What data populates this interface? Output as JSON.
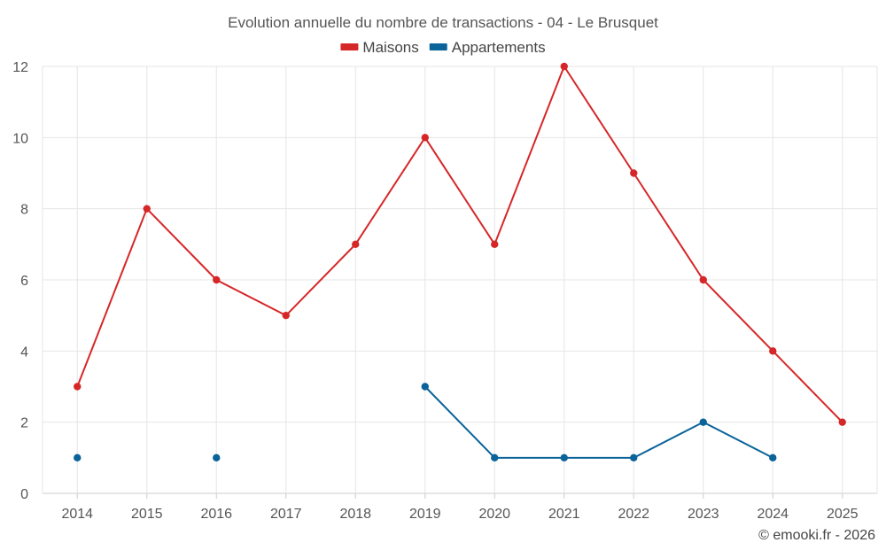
{
  "chart_data": {
    "type": "line",
    "title": "Evolution annuelle du nombre de transactions - 04 - Le Brusquet",
    "xlabel": "",
    "ylabel": "",
    "categories": [
      "2014",
      "2015",
      "2016",
      "2017",
      "2018",
      "2019",
      "2020",
      "2021",
      "2022",
      "2023",
      "2024",
      "2025"
    ],
    "ylim": [
      0,
      12
    ],
    "yticks": [
      0,
      2,
      4,
      6,
      8,
      10,
      12
    ],
    "grid": true,
    "legend_position": "top-center",
    "series": [
      {
        "name": "Maisons",
        "color": "#d62728",
        "values": [
          3,
          8,
          6,
          5,
          7,
          10,
          7,
          12,
          9,
          6,
          4,
          2
        ]
      },
      {
        "name": "Appartements",
        "color": "#0a6399",
        "values": [
          1,
          null,
          1,
          null,
          null,
          3,
          1,
          1,
          1,
          2,
          1,
          null
        ]
      }
    ]
  },
  "credit": "© emooki.fr - 2026"
}
